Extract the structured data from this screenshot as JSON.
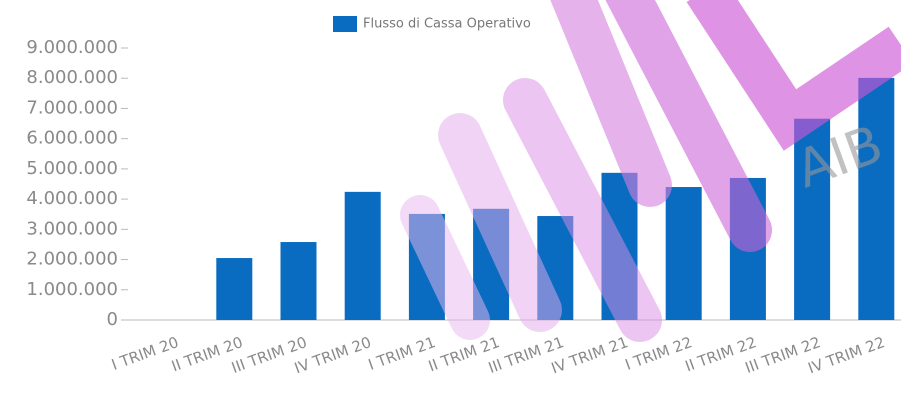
{
  "chart_data": {
    "type": "bar",
    "legend": "Flusso di Cassa Operativo",
    "color": "#0a6cc0",
    "watermark": "AIB",
    "categories": [
      "I TRIM 20",
      "II TRIM 20",
      "III TRIM 20",
      "IV TRIM 20",
      "I TRIM 21",
      "II TRIM 21",
      "III TRIM 21",
      "IV TRIM 21",
      "I TRIM 22",
      "II TRIM 22",
      "III TRIM 22",
      "IV TRIM 22"
    ],
    "values": [
      0,
      2050000,
      2580000,
      4240000,
      3510000,
      3680000,
      3440000,
      4870000,
      4400000,
      4700000,
      6660000,
      8010000
    ],
    "ylim": [
      0,
      9000000
    ],
    "yticks": [
      0,
      {
        "value": 1000000,
        "label": "1.000.000"
      },
      {
        "value": 2000000,
        "label": "2.000.000"
      },
      {
        "value": 3000000,
        "label": "3.000.000"
      },
      {
        "value": 4000000,
        "label": "4.000.000"
      },
      {
        "value": 5000000,
        "label": "5.000.000"
      },
      {
        "value": 6000000,
        "label": "6.000.000"
      },
      {
        "value": 7000000,
        "label": "7.000.000"
      },
      {
        "value": 8000000,
        "label": "8.000.000"
      },
      {
        "value": 9000000,
        "label": "9.000.000"
      }
    ]
  }
}
